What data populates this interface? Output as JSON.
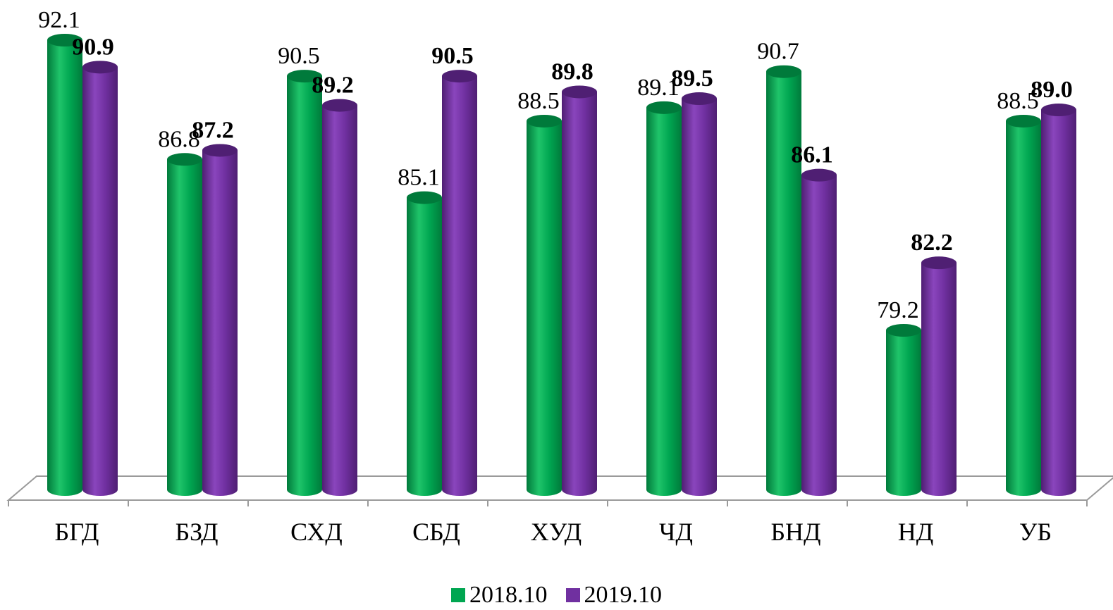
{
  "chart_data": {
    "type": "bar",
    "style": "3d-cylinder",
    "categories": [
      "БГД",
      "БЗД",
      "СХД",
      "СБД",
      "ХУД",
      "ЧД",
      "БНД",
      "НД",
      "УБ"
    ],
    "series": [
      {
        "name": "2018.10",
        "color": "#00A651",
        "values": [
          92.1,
          86.8,
          90.5,
          85.1,
          88.5,
          89.1,
          90.7,
          79.2,
          88.5
        ],
        "labels": [
          "92.1",
          "86.8",
          "90.5",
          "85.1",
          "88.5",
          "89.1",
          "90.7",
          "79.2",
          "88.5"
        ]
      },
      {
        "name": "2019.10",
        "color": "#7030A0",
        "values": [
          90.9,
          87.2,
          89.2,
          90.5,
          89.8,
          89.5,
          86.1,
          82.2,
          89.0
        ],
        "labels": [
          "90.9",
          "87.2",
          "89.2",
          "90.5",
          "89.8",
          "89.5",
          "86.1",
          "82.2",
          "89.0"
        ]
      }
    ],
    "title": "",
    "xlabel": "",
    "ylabel": "",
    "axis_visible": false,
    "grid": false,
    "legend_position": "bottom-center"
  }
}
